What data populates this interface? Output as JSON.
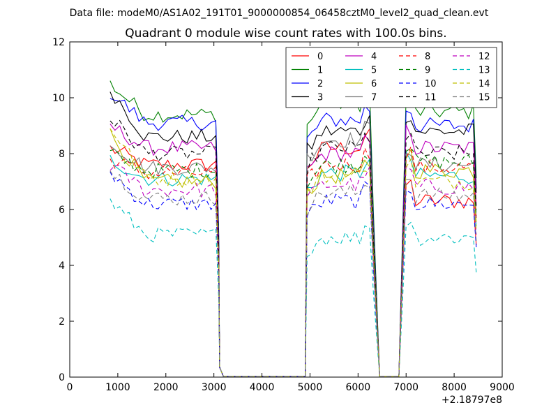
{
  "header": {
    "suptitle": "Data file: modeM0/AS1A02_191T01_9000000854_06458cztM0_level2_quad_clean.evt"
  },
  "chart_data": {
    "type": "line",
    "title": "Quadrant 0 module wise count rates with 100.0s bins.",
    "xlabel": "",
    "ylabel": "",
    "x_offset_label": "+2.18797e8",
    "xlim": [
      0,
      9000
    ],
    "ylim": [
      0,
      12
    ],
    "xticks": [
      0,
      1000,
      2000,
      3000,
      4000,
      5000,
      6000,
      7000,
      8000,
      9000
    ],
    "yticks": [
      0,
      2,
      4,
      6,
      8,
      10,
      12
    ],
    "grid": false,
    "legend": {
      "placement": "top-right",
      "columns": 4
    },
    "series": [
      {
        "name": "0",
        "color": "#ff0000",
        "dash": "solid",
        "levels": [
          8.2,
          7.6,
          8.2,
          6.3
        ]
      },
      {
        "name": "1",
        "color": "#008000",
        "dash": "solid",
        "levels": [
          10.5,
          9.4,
          9.8,
          9.5
        ]
      },
      {
        "name": "2",
        "color": "#0000ff",
        "dash": "solid",
        "levels": [
          10.2,
          9.1,
          9.2,
          9.0
        ]
      },
      {
        "name": "3",
        "color": "#000000",
        "dash": "solid",
        "levels": [
          10.3,
          8.6,
          8.8,
          8.8
        ]
      },
      {
        "name": "4",
        "color": "#bf00bf",
        "dash": "solid",
        "levels": [
          9.0,
          8.2,
          8.0,
          8.2
        ]
      },
      {
        "name": "5",
        "color": "#00bfbf",
        "dash": "solid",
        "levels": [
          7.8,
          7.1,
          7.3,
          7.2
        ]
      },
      {
        "name": "6",
        "color": "#bfbf00",
        "dash": "solid",
        "levels": [
          8.7,
          7.0,
          7.2,
          7.4
        ]
      },
      {
        "name": "7",
        "color": "#808080",
        "dash": "solid",
        "levels": [
          8.4,
          7.5,
          8.5,
          7.6
        ]
      },
      {
        "name": "8",
        "color": "#ff0000",
        "dash": "dashed",
        "levels": [
          7.8,
          7.3,
          7.6,
          7.5
        ]
      },
      {
        "name": "9",
        "color": "#008000",
        "dash": "dashed",
        "levels": [
          8.0,
          7.4,
          7.6,
          7.7
        ]
      },
      {
        "name": "10",
        "color": "#0000ff",
        "dash": "dashed",
        "levels": [
          7.3,
          6.2,
          6.3,
          6.2
        ]
      },
      {
        "name": "11",
        "color": "#000000",
        "dash": "dashed",
        "levels": [
          9.3,
          8.0,
          8.2,
          8.0
        ]
      },
      {
        "name": "12",
        "color": "#bf00bf",
        "dash": "dashed",
        "levels": [
          7.6,
          6.7,
          6.9,
          6.8
        ]
      },
      {
        "name": "13",
        "color": "#00bfbf",
        "dash": "dashed",
        "levels": [
          6.3,
          5.1,
          5.0,
          5.0
        ]
      },
      {
        "name": "14",
        "color": "#bfbf00",
        "dash": "dashed",
        "levels": [
          9.0,
          7.1,
          7.2,
          7.0
        ]
      },
      {
        "name": "15",
        "color": "#808080",
        "dash": "dashed",
        "levels": [
          7.4,
          6.4,
          6.6,
          6.5
        ]
      }
    ],
    "segments": [
      {
        "x_start": 840,
        "x_end": 3040,
        "end_x": 3100,
        "end_drop": 0.55
      },
      {
        "x_start": 4940,
        "x_end": 6240,
        "end_x": 6320,
        "end_drop": 0.6
      },
      {
        "x_start": 7000,
        "x_end": 8400,
        "end_x": 8460,
        "end_drop": 0.75
      }
    ],
    "zero_ranges": [
      [
        3200,
        4900
      ],
      [
        6450,
        6850
      ]
    ]
  }
}
